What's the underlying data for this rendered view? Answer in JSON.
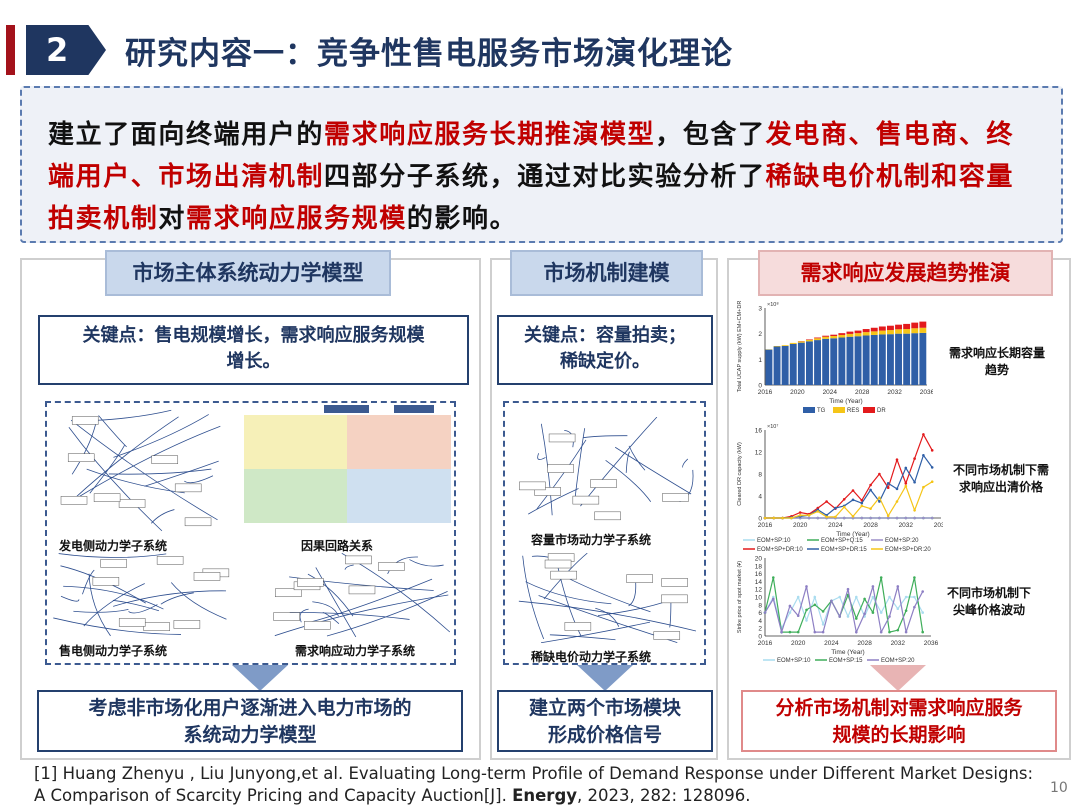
{
  "header": {
    "number": "2",
    "title": "研究内容一：竞争性售电服务市场演化理论"
  },
  "intro": {
    "segments": [
      {
        "text": "建立了面向终端用户的",
        "highlight": false
      },
      {
        "text": "需求响应服务长期推演模型",
        "highlight": true
      },
      {
        "text": "，包含了",
        "highlight": false
      },
      {
        "text": "发电商、售电商、终端用户、市场出清机制",
        "highlight": true
      },
      {
        "text": "四部分子系统，通过对比实验分析了",
        "highlight": false
      },
      {
        "text": "稀缺电价机制和容量拍卖机制",
        "highlight": true
      },
      {
        "text": "对",
        "highlight": false
      },
      {
        "text": "需求响应服务规模",
        "highlight": true
      },
      {
        "text": "的影响。",
        "highlight": false
      }
    ]
  },
  "panels": [
    {
      "title": "市场主体系统动力学模型",
      "key_line1": "关键点：售电规模增长，需求响应服务规模",
      "key_line2": "增长。",
      "captions": [
        "发电侧动力学子系统",
        "因果回路关系",
        "售电侧动力学子系统",
        "需求响应动力学子系统"
      ],
      "bottom_line1": "考虑非市场化用户逐渐进入电力市场的",
      "bottom_line2": "系统动力学模型"
    },
    {
      "title": "市场机制建模",
      "key_line1": "关键点：容量拍卖；",
      "key_line2": "稀缺定价。",
      "captions": [
        "容量市场动力学子系统",
        "稀缺电价动力学子系统"
      ],
      "bottom_line1": "建立两个市场模块",
      "bottom_line2": "形成价格信号"
    },
    {
      "title": "需求响应发展趋势推演",
      "chart_labels": [
        [
          "需求响应长期容量",
          "趋势"
        ],
        [
          "不同市场机制下需",
          "求响应出清价格"
        ],
        [
          "不同市场机制下",
          "尖峰价格波动"
        ]
      ],
      "bottom_line1": "分析市场机制对需求响应服务",
      "bottom_line2": "规模的长期影响"
    }
  ],
  "colors": {
    "navy": "#1f3660",
    "highlight_red": "#c00000",
    "accent_bar": "#a3121b"
  },
  "chart_data": [
    {
      "type": "bar",
      "stacked": true,
      "xlabel": "Time (Year)",
      "ylabel": "Total UCAP supply (kW) EM+CM+DR",
      "y_multiplier": "×10⁸",
      "ylim": [
        0,
        3
      ],
      "yticks": [
        0,
        1,
        2,
        3
      ],
      "xticks": [
        2016,
        2020,
        2024,
        2028,
        2032,
        2036
      ],
      "categories": [
        2016,
        2017,
        2018,
        2019,
        2020,
        2021,
        2022,
        2023,
        2024,
        2025,
        2026,
        2027,
        2028,
        2029,
        2030,
        2031,
        2032,
        2033,
        2034,
        2035
      ],
      "series": [
        {
          "name": "TG",
          "color": "#2f5fa7",
          "values": [
            1.38,
            1.5,
            1.52,
            1.6,
            1.65,
            1.7,
            1.75,
            1.8,
            1.82,
            1.85,
            1.88,
            1.9,
            1.93,
            1.95,
            1.97,
            1.98,
            2.0,
            2.0,
            2.02,
            2.03
          ]
        },
        {
          "name": "RES",
          "color": "#f5c518",
          "values": [
            0.01,
            0.02,
            0.03,
            0.04,
            0.05,
            0.06,
            0.07,
            0.08,
            0.09,
            0.1,
            0.11,
            0.12,
            0.13,
            0.14,
            0.15,
            0.16,
            0.17,
            0.18,
            0.19,
            0.2
          ]
        },
        {
          "name": "DR",
          "color": "#e31a1c",
          "values": [
            0,
            0,
            0,
            0,
            0.01,
            0.02,
            0.03,
            0.04,
            0.05,
            0.07,
            0.09,
            0.1,
            0.12,
            0.14,
            0.16,
            0.17,
            0.18,
            0.2,
            0.22,
            0.24
          ]
        }
      ]
    },
    {
      "type": "line",
      "xlabel": "Time (Year)",
      "ylabel": "Cleared DR capacity (kW)",
      "y_multiplier": "×10⁷",
      "ylim": [
        0,
        16
      ],
      "yticks": [
        0,
        4,
        8,
        12,
        16
      ],
      "xticks": [
        2016,
        2020,
        2024,
        2028,
        2032,
        2036
      ],
      "x": [
        2016,
        2017,
        2018,
        2019,
        2020,
        2021,
        2022,
        2023,
        2024,
        2025,
        2026,
        2027,
        2028,
        2029,
        2030,
        2031,
        2032,
        2033,
        2034,
        2035
      ],
      "series": [
        {
          "name": "EOM+SP:10",
          "color": "#a9dcef",
          "values": [
            0,
            0,
            0,
            0,
            0,
            0,
            0,
            0,
            0,
            0,
            0,
            0,
            0,
            0,
            0,
            0,
            0,
            0,
            0,
            0
          ]
        },
        {
          "name": "EOM+SP+Q:15",
          "color": "#3fae5a",
          "values": [
            0,
            0,
            0,
            0,
            0,
            0,
            0,
            0,
            0,
            0,
            0,
            0,
            0,
            0,
            0,
            0,
            0,
            0,
            0,
            0
          ]
        },
        {
          "name": "EOM+SP:20",
          "color": "#9b8ec9",
          "values": [
            0,
            0,
            0,
            0,
            0,
            0,
            0,
            0,
            0,
            0,
            0,
            0,
            0,
            0,
            0,
            0,
            0,
            0,
            0,
            0
          ]
        },
        {
          "name": "EOM+SP+DR:10",
          "color": "#e31a1c",
          "values": [
            0,
            0,
            0,
            0.3,
            1,
            0.7,
            1.8,
            3,
            1.7,
            3.4,
            5,
            3.2,
            6,
            8,
            5.5,
            10.6,
            6.3,
            10.8,
            15.2,
            12.3
          ]
        },
        {
          "name": "EOM+SP+DR:15",
          "color": "#2f5fa7",
          "values": [
            0,
            0,
            0,
            0.1,
            0.3,
            0.5,
            1.5,
            0.5,
            1.8,
            2.2,
            3.3,
            2.7,
            5.1,
            3,
            6.3,
            5.3,
            9.1,
            6.5,
            11.4,
            9.2
          ]
        },
        {
          "name": "EOM+SP+DR:20",
          "color": "#f5c518",
          "values": [
            0,
            0,
            0,
            0,
            0.5,
            0.5,
            1.2,
            0.2,
            0.2,
            2,
            0.3,
            2.2,
            1.7,
            3.7,
            0.4,
            3,
            5.8,
            1.4,
            5.6,
            6.6
          ]
        }
      ]
    },
    {
      "type": "line",
      "xlabel": "Time (Year)",
      "ylabel": "Strike price of spot market (¥)",
      "ylim": [
        0,
        20
      ],
      "yticks": [
        0,
        2,
        4,
        6,
        8,
        10,
        12,
        14,
        16,
        18,
        20
      ],
      "xticks": [
        2016,
        2020,
        2024,
        2028,
        2032,
        2036
      ],
      "x": [
        2016,
        2017,
        2018,
        2019,
        2020,
        2021,
        2022,
        2023,
        2024,
        2025,
        2026,
        2027,
        2028,
        2029,
        2030,
        2031,
        2032,
        2033,
        2034,
        2035
      ],
      "series": [
        {
          "name": "EOM+SP:10",
          "color": "#a9dcef",
          "values": [
            6,
            10,
            2,
            6,
            10,
            4,
            10,
            3,
            9,
            10,
            5,
            10,
            5,
            10,
            6,
            10,
            7,
            10,
            10,
            6
          ]
        },
        {
          "name": "EOM+SP:15",
          "color": "#3fae5a",
          "values": [
            6,
            15,
            1,
            1,
            1,
            6.7,
            8,
            6.3,
            9,
            5,
            10.5,
            4.5,
            9.5,
            6,
            15,
            1,
            1.5,
            6.5,
            15,
            1
          ]
        },
        {
          "name": "EOM+SP:20",
          "color": "#8d7fc4",
          "values": [
            6,
            9.5,
            1,
            7.7,
            5.2,
            12.7,
            1,
            1,
            9,
            5,
            12,
            1,
            5.7,
            12.7,
            1,
            5,
            12.7,
            1,
            7.4,
            11.4
          ]
        }
      ]
    }
  ],
  "footer": {
    "line1": "[1]  Huang Zhenyu , Liu Junyong,et al. Evaluating Long-term Profile of Demand Response under Different Market Designs:",
    "line2a": "A Comparison of Scarcity Pricing and Capacity Auction[J]. ",
    "journal": "Energy",
    "line2b": ", 2023, 282: 128096.",
    "page": "10"
  }
}
